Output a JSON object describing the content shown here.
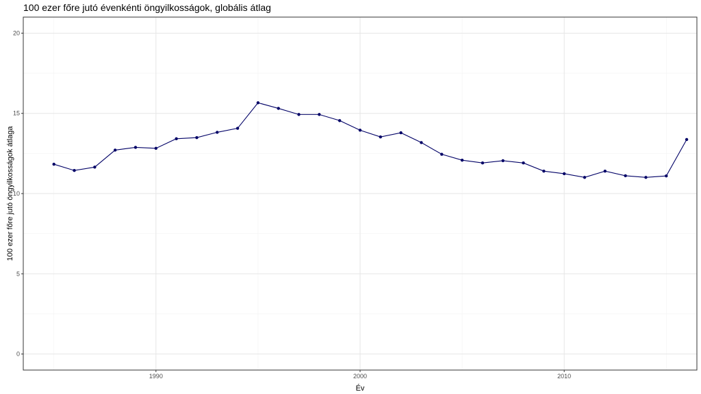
{
  "chart_data": {
    "type": "line",
    "title": "100 ezer főre jutó évenkénti öngyilkosságok, globális átlag",
    "xlabel": "Év",
    "ylabel": "100 ezer főre jutó öngyilkosságok átlaga",
    "xlim": [
      1983.5,
      2016.5
    ],
    "ylim": [
      -1,
      21
    ],
    "x_ticks": [
      1990,
      2000,
      2010
    ],
    "y_ticks": [
      0,
      5,
      10,
      15,
      20
    ],
    "grid": true,
    "line_color": "#000066",
    "point_color": "#000066",
    "series": [
      {
        "x": [
          1985,
          1986,
          1987,
          1988,
          1989,
          1990,
          1991,
          1992,
          1993,
          1994,
          1995,
          1996,
          1997,
          1998,
          1999,
          2000,
          2001,
          2002,
          2003,
          2004,
          2005,
          2006,
          2007,
          2008,
          2009,
          2010,
          2011,
          2012,
          2013,
          2014,
          2015,
          2016
        ],
        "y": [
          11.83,
          11.44,
          11.65,
          12.71,
          12.88,
          12.82,
          13.42,
          13.49,
          13.82,
          14.07,
          15.66,
          15.31,
          14.93,
          14.93,
          14.55,
          13.95,
          13.53,
          13.79,
          13.18,
          12.45,
          12.08,
          11.91,
          12.05,
          11.91,
          11.4,
          11.24,
          11.01,
          11.4,
          11.11,
          11.01,
          11.1,
          13.37
        ]
      }
    ]
  }
}
